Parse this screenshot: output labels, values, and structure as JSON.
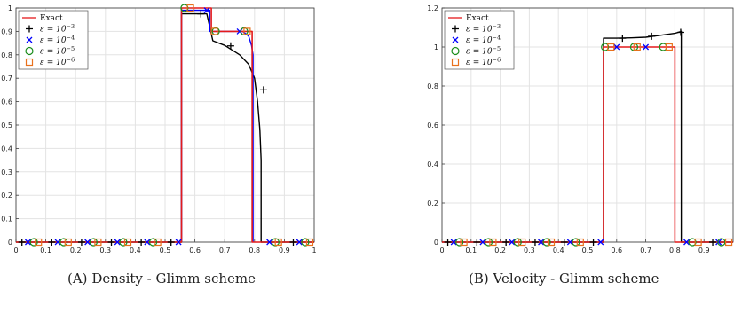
{
  "captions": [
    {
      "tag": "(A)",
      "text": "Density - Glimm scheme"
    },
    {
      "tag": "(B)",
      "text": "Velocity - Glimm scheme"
    }
  ],
  "legend": {
    "exact": "Exact",
    "eps_base": "ε = 10",
    "exponents": [
      "−3",
      "−4",
      "−5",
      "−6"
    ]
  },
  "colors": {
    "exact": "#e41a1c",
    "e3": "#000000",
    "e4": "#0000ff",
    "e5": "#1a8c1a",
    "e6": "#e8711c",
    "grid": "#e3e3e3"
  },
  "chart_data": [
    {
      "type": "line",
      "title": "",
      "xlabel": "",
      "ylabel": "",
      "xlim": [
        0,
        1
      ],
      "ylim": [
        0,
        1
      ],
      "xticks": [
        "0",
        "0.1",
        "0.2",
        "0.3",
        "0.4",
        "0.5",
        "0.6",
        "0.7",
        "0.8",
        "0.9",
        "1"
      ],
      "yticks": [
        "0",
        "0.1",
        "0.2",
        "0.3",
        "0.4",
        "0.5",
        "0.6",
        "0.7",
        "0.8",
        "0.9",
        "1"
      ],
      "grid": true,
      "legend_position": "top-left",
      "series": [
        {
          "key": "exact",
          "style": "line",
          "x": [
            0,
            0.555,
            0.555,
            0.655,
            0.655,
            0.792,
            0.792,
            1
          ],
          "y": [
            0,
            0,
            1,
            1,
            0.9,
            0.9,
            0,
            0
          ]
        },
        {
          "key": "e3",
          "style": "line+marker",
          "marker": "plus",
          "x": [
            0,
            0.555,
            0.555,
            0.64,
            0.66,
            0.7,
            0.75,
            0.78,
            0.8,
            0.81,
            0.818,
            0.822,
            0.822,
            1
          ],
          "y": [
            0,
            0,
            0.975,
            0.975,
            0.86,
            0.84,
            0.8,
            0.76,
            0.7,
            0.6,
            0.48,
            0.35,
            0,
            0
          ],
          "markers_x": [
            0.02,
            0.12,
            0.22,
            0.32,
            0.42,
            0.52,
            0.62,
            0.72,
            0.83,
            0.93
          ],
          "markers_y": [
            0,
            0,
            0,
            0,
            0,
            0,
            0.975,
            0.838,
            0.65,
            0
          ]
        },
        {
          "key": "e4",
          "style": "line+marker",
          "marker": "x",
          "x": [
            0.555,
            0.555,
            0.65,
            0.65,
            0.76,
            0.78,
            0.79,
            0.795,
            0.795
          ],
          "y": [
            0,
            0.99,
            0.99,
            0.9,
            0.9,
            0.88,
            0.84,
            0.8,
            0
          ],
          "markers_x": [
            0.04,
            0.14,
            0.24,
            0.34,
            0.44,
            0.545,
            0.64,
            0.75,
            0.85,
            0.95
          ],
          "markers_y": [
            0,
            0,
            0,
            0,
            0,
            0,
            0.99,
            0.9,
            0,
            0
          ]
        },
        {
          "key": "e5",
          "style": "marker",
          "marker": "circle",
          "markers_x": [
            0.06,
            0.16,
            0.26,
            0.36,
            0.46,
            0.565,
            0.67,
            0.765,
            0.87,
            0.97
          ],
          "markers_y": [
            0,
            0,
            0,
            0,
            0,
            1,
            0.9,
            0.9,
            0,
            0
          ]
        },
        {
          "key": "e6",
          "style": "marker",
          "marker": "square",
          "markers_x": [
            0.075,
            0.175,
            0.275,
            0.375,
            0.475,
            0.585,
            0.665,
            0.775,
            0.88,
            0.985
          ],
          "markers_y": [
            0,
            0,
            0,
            0,
            0,
            1,
            0.9,
            0.9,
            0,
            0
          ]
        }
      ]
    },
    {
      "type": "line",
      "title": "",
      "xlabel": "",
      "ylabel": "",
      "xlim": [
        0,
        1
      ],
      "ylim": [
        0,
        1.2
      ],
      "xticks": [
        "0",
        "0.1",
        "0.2",
        "0.3",
        "0.4",
        "0.5",
        "0.6",
        "0.7",
        "0.8",
        "0.9"
      ],
      "yticks": [
        "0",
        "0.2",
        "0.4",
        "0.6",
        "0.8",
        "1",
        "1.2"
      ],
      "grid": true,
      "legend_position": "top-left",
      "series": [
        {
          "key": "exact",
          "style": "line",
          "x": [
            0,
            0.555,
            0.555,
            0.8,
            0.8,
            1
          ],
          "y": [
            0,
            0,
            1,
            1,
            0,
            0
          ]
        },
        {
          "key": "e3",
          "style": "line+marker",
          "marker": "plus",
          "x": [
            0,
            0.555,
            0.555,
            0.6,
            0.65,
            0.7,
            0.75,
            0.8,
            0.822,
            0.822,
            1
          ],
          "y": [
            0,
            0,
            1.045,
            1.045,
            1.047,
            1.05,
            1.06,
            1.07,
            1.08,
            0,
            0
          ],
          "markers_x": [
            0.02,
            0.12,
            0.22,
            0.32,
            0.42,
            0.52,
            0.62,
            0.72,
            0.82,
            0.93
          ],
          "markers_y": [
            0,
            0,
            0,
            0,
            0,
            0,
            1.045,
            1.055,
            1.075,
            0
          ]
        },
        {
          "key": "e4",
          "style": "marker",
          "marker": "x",
          "markers_x": [
            0.04,
            0.14,
            0.24,
            0.34,
            0.44,
            0.545,
            0.6,
            0.7,
            0.84,
            0.95
          ],
          "markers_y": [
            0,
            0,
            0,
            0,
            0,
            0,
            1,
            1,
            0,
            0
          ]
        },
        {
          "key": "e5",
          "style": "marker",
          "marker": "circle",
          "markers_x": [
            0.06,
            0.16,
            0.26,
            0.36,
            0.46,
            0.56,
            0.66,
            0.76,
            0.86,
            0.96
          ],
          "markers_y": [
            0,
            0,
            0,
            0,
            0,
            1,
            1,
            1,
            0,
            0
          ]
        },
        {
          "key": "e6",
          "style": "marker",
          "marker": "square",
          "markers_x": [
            0.075,
            0.175,
            0.275,
            0.375,
            0.475,
            0.58,
            0.67,
            0.78,
            0.88,
            0.985
          ],
          "markers_y": [
            0,
            0,
            0,
            0,
            0,
            1,
            1,
            1,
            0,
            0
          ]
        }
      ]
    }
  ]
}
